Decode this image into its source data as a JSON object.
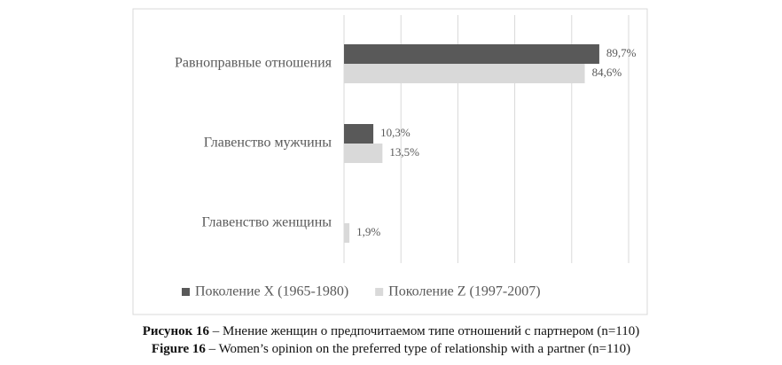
{
  "chart_data": {
    "type": "hbar",
    "categories": [
      "Равноправные отношения",
      "Главенство мужчины",
      "Главенство женщины"
    ],
    "series": [
      {
        "name": "Поколение X (1965-1980)",
        "color": "#595959",
        "values": [
          89.7,
          10.3,
          null
        ],
        "value_labels": [
          "89,7%",
          "10,3%",
          null
        ]
      },
      {
        "name": "Поколение Z (1997-2007)",
        "color": "#d9d9d9",
        "values": [
          84.6,
          13.5,
          1.9
        ],
        "value_labels": [
          "84,6%",
          "13,5%",
          "1,9%"
        ]
      }
    ],
    "xlim": [
      0,
      100
    ],
    "xticks": [
      0,
      20,
      40,
      60,
      80,
      100
    ],
    "grid": true,
    "legend": "bottom"
  },
  "captions": [
    {
      "label": "Рисунок 16",
      "text": "– Мнение женщин о предпочитаемом типе отношений с партнером (n=110)"
    },
    {
      "label": "Figure 16",
      "text": "– Women’s opinion on the preferred type of relationship with a partner (n=110)"
    }
  ]
}
